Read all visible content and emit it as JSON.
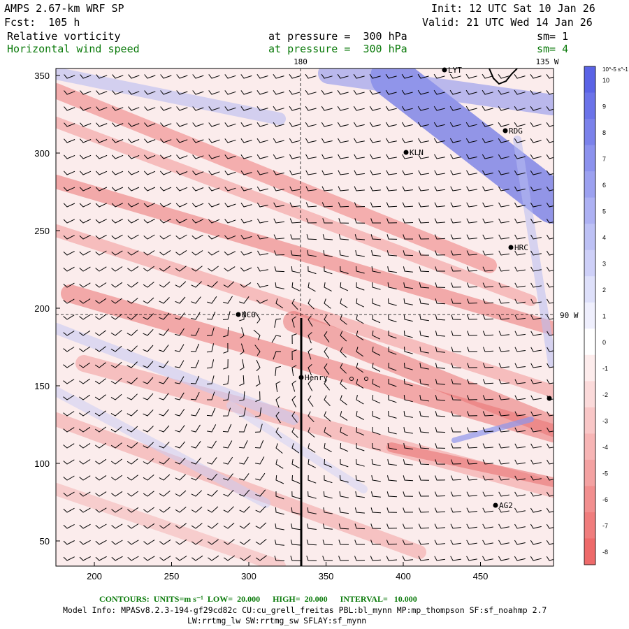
{
  "header": {
    "model_title": "AMPS 2.67-km WRF SP",
    "forecast": "Fcst:  105 h",
    "init": "Init: 12 UTC Sat 10 Jan 26",
    "valid": "Valid: 21 UTC Wed 14 Jan 26",
    "field1_name": "Relative vorticity",
    "field1_level": "at pressure =  300 hPa",
    "field1_smooth": "sm= 1",
    "field2_name": "Horizontal wind speed",
    "field2_level": "at pressure =  300 hPa",
    "field2_smooth": "sm= 4"
  },
  "map": {
    "x_ticks": [
      "200",
      "250",
      "300",
      "350",
      "400",
      "450"
    ],
    "y_ticks": [
      "350",
      "300",
      "250",
      "200",
      "150",
      "100",
      "50"
    ],
    "meridian_labels": {
      "lon180": "180",
      "lon135w": "135 W",
      "lon90w": "90 W"
    },
    "stations": [
      {
        "code": "LYT"
      },
      {
        "code": "RDG"
      },
      {
        "code": "KLN"
      },
      {
        "code": "HRC"
      },
      {
        "code": "NCO"
      },
      {
        "code": "Henry"
      },
      {
        "code": "AG2"
      }
    ]
  },
  "colorbar": {
    "units": "10^-5 s^-1",
    "labels": [
      "10",
      "9",
      "8",
      "7",
      "6",
      "5",
      "4",
      "3",
      "2",
      "1",
      "0",
      "-1",
      "-2",
      "-3",
      "-4",
      "-5",
      "-6",
      "-7",
      "-8"
    ],
    "positive_color": "#5a63e6",
    "negative_color": "#ee6a6a"
  },
  "footer": {
    "contours": "CONTOURS:  UNITS=m s⁻¹  LOW=  20.000      HIGH=  20.000      INTERVAL=   10.000",
    "model_info": "Model Info: MPASv8.2.3-194-gf29cd82c CU:cu_grell_freitas PBL:bl_mynn MP:mp_thompson SF:sf_noahmp 2.7",
    "model_info2": "LW:rrtmg_lw SW:rrtmg_sw SFLAY:sf_mynn"
  }
}
